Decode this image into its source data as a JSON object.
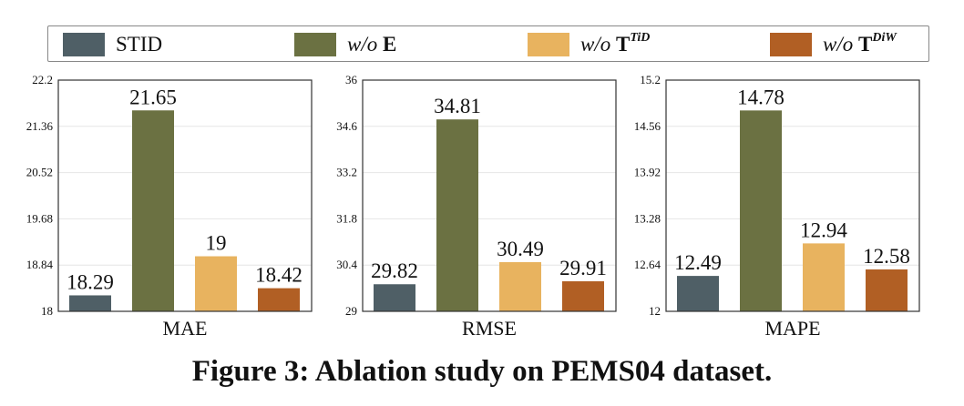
{
  "legend": {
    "items": [
      {
        "name": "STID",
        "prefix": "STID",
        "bold": "",
        "sup": "",
        "color": "#4f5f66"
      },
      {
        "name": "w/o E",
        "prefix": "w/o",
        "bold": "E",
        "sup": "",
        "color": "#6b7142"
      },
      {
        "name": "w/o T^TiD",
        "prefix": "w/o",
        "bold": "T",
        "sup": "TiD",
        "color": "#e8b35f"
      },
      {
        "name": "w/o T^DiW",
        "prefix": "w/o",
        "bold": "T",
        "sup": "DiW",
        "color": "#b15f24"
      }
    ]
  },
  "caption": "Figure 3: Ablation study on PEMS04 dataset.",
  "chart_data": [
    {
      "type": "bar",
      "title": "",
      "xlabel": "MAE",
      "ylabel": "",
      "categories": [
        "STID",
        "w/o E",
        "w/o T^TiD",
        "w/o T^DiW"
      ],
      "values": [
        18.29,
        21.65,
        19,
        18.42
      ],
      "value_labels": [
        "18.29",
        "21.65",
        "19",
        "18.42"
      ],
      "ylim": [
        18,
        22.2
      ],
      "yticks": [
        "18",
        "18.84",
        "19.68",
        "20.52",
        "21.36",
        "22.2"
      ],
      "colors": [
        "#4f5f66",
        "#6b7142",
        "#e8b35f",
        "#b15f24"
      ]
    },
    {
      "type": "bar",
      "title": "",
      "xlabel": "RMSE",
      "ylabel": "",
      "categories": [
        "STID",
        "w/o E",
        "w/o T^TiD",
        "w/o T^DiW"
      ],
      "values": [
        29.82,
        34.81,
        30.49,
        29.91
      ],
      "value_labels": [
        "29.82",
        "34.81",
        "30.49",
        "29.91"
      ],
      "ylim": [
        29,
        36
      ],
      "yticks": [
        "29",
        "30.4",
        "31.8",
        "33.2",
        "34.6",
        "36"
      ],
      "colors": [
        "#4f5f66",
        "#6b7142",
        "#e8b35f",
        "#b15f24"
      ]
    },
    {
      "type": "bar",
      "title": "",
      "xlabel": "MAPE",
      "ylabel": "",
      "categories": [
        "STID",
        "w/o E",
        "w/o T^TiD",
        "w/o T^DiW"
      ],
      "values": [
        12.49,
        14.78,
        12.94,
        12.58
      ],
      "value_labels": [
        "12.49",
        "14.78",
        "12.94",
        "12.58"
      ],
      "ylim": [
        12,
        15.2
      ],
      "yticks": [
        "12",
        "12.64",
        "13.28",
        "13.92",
        "14.56",
        "15.2"
      ],
      "colors": [
        "#4f5f66",
        "#6b7142",
        "#e8b35f",
        "#b15f24"
      ]
    }
  ]
}
